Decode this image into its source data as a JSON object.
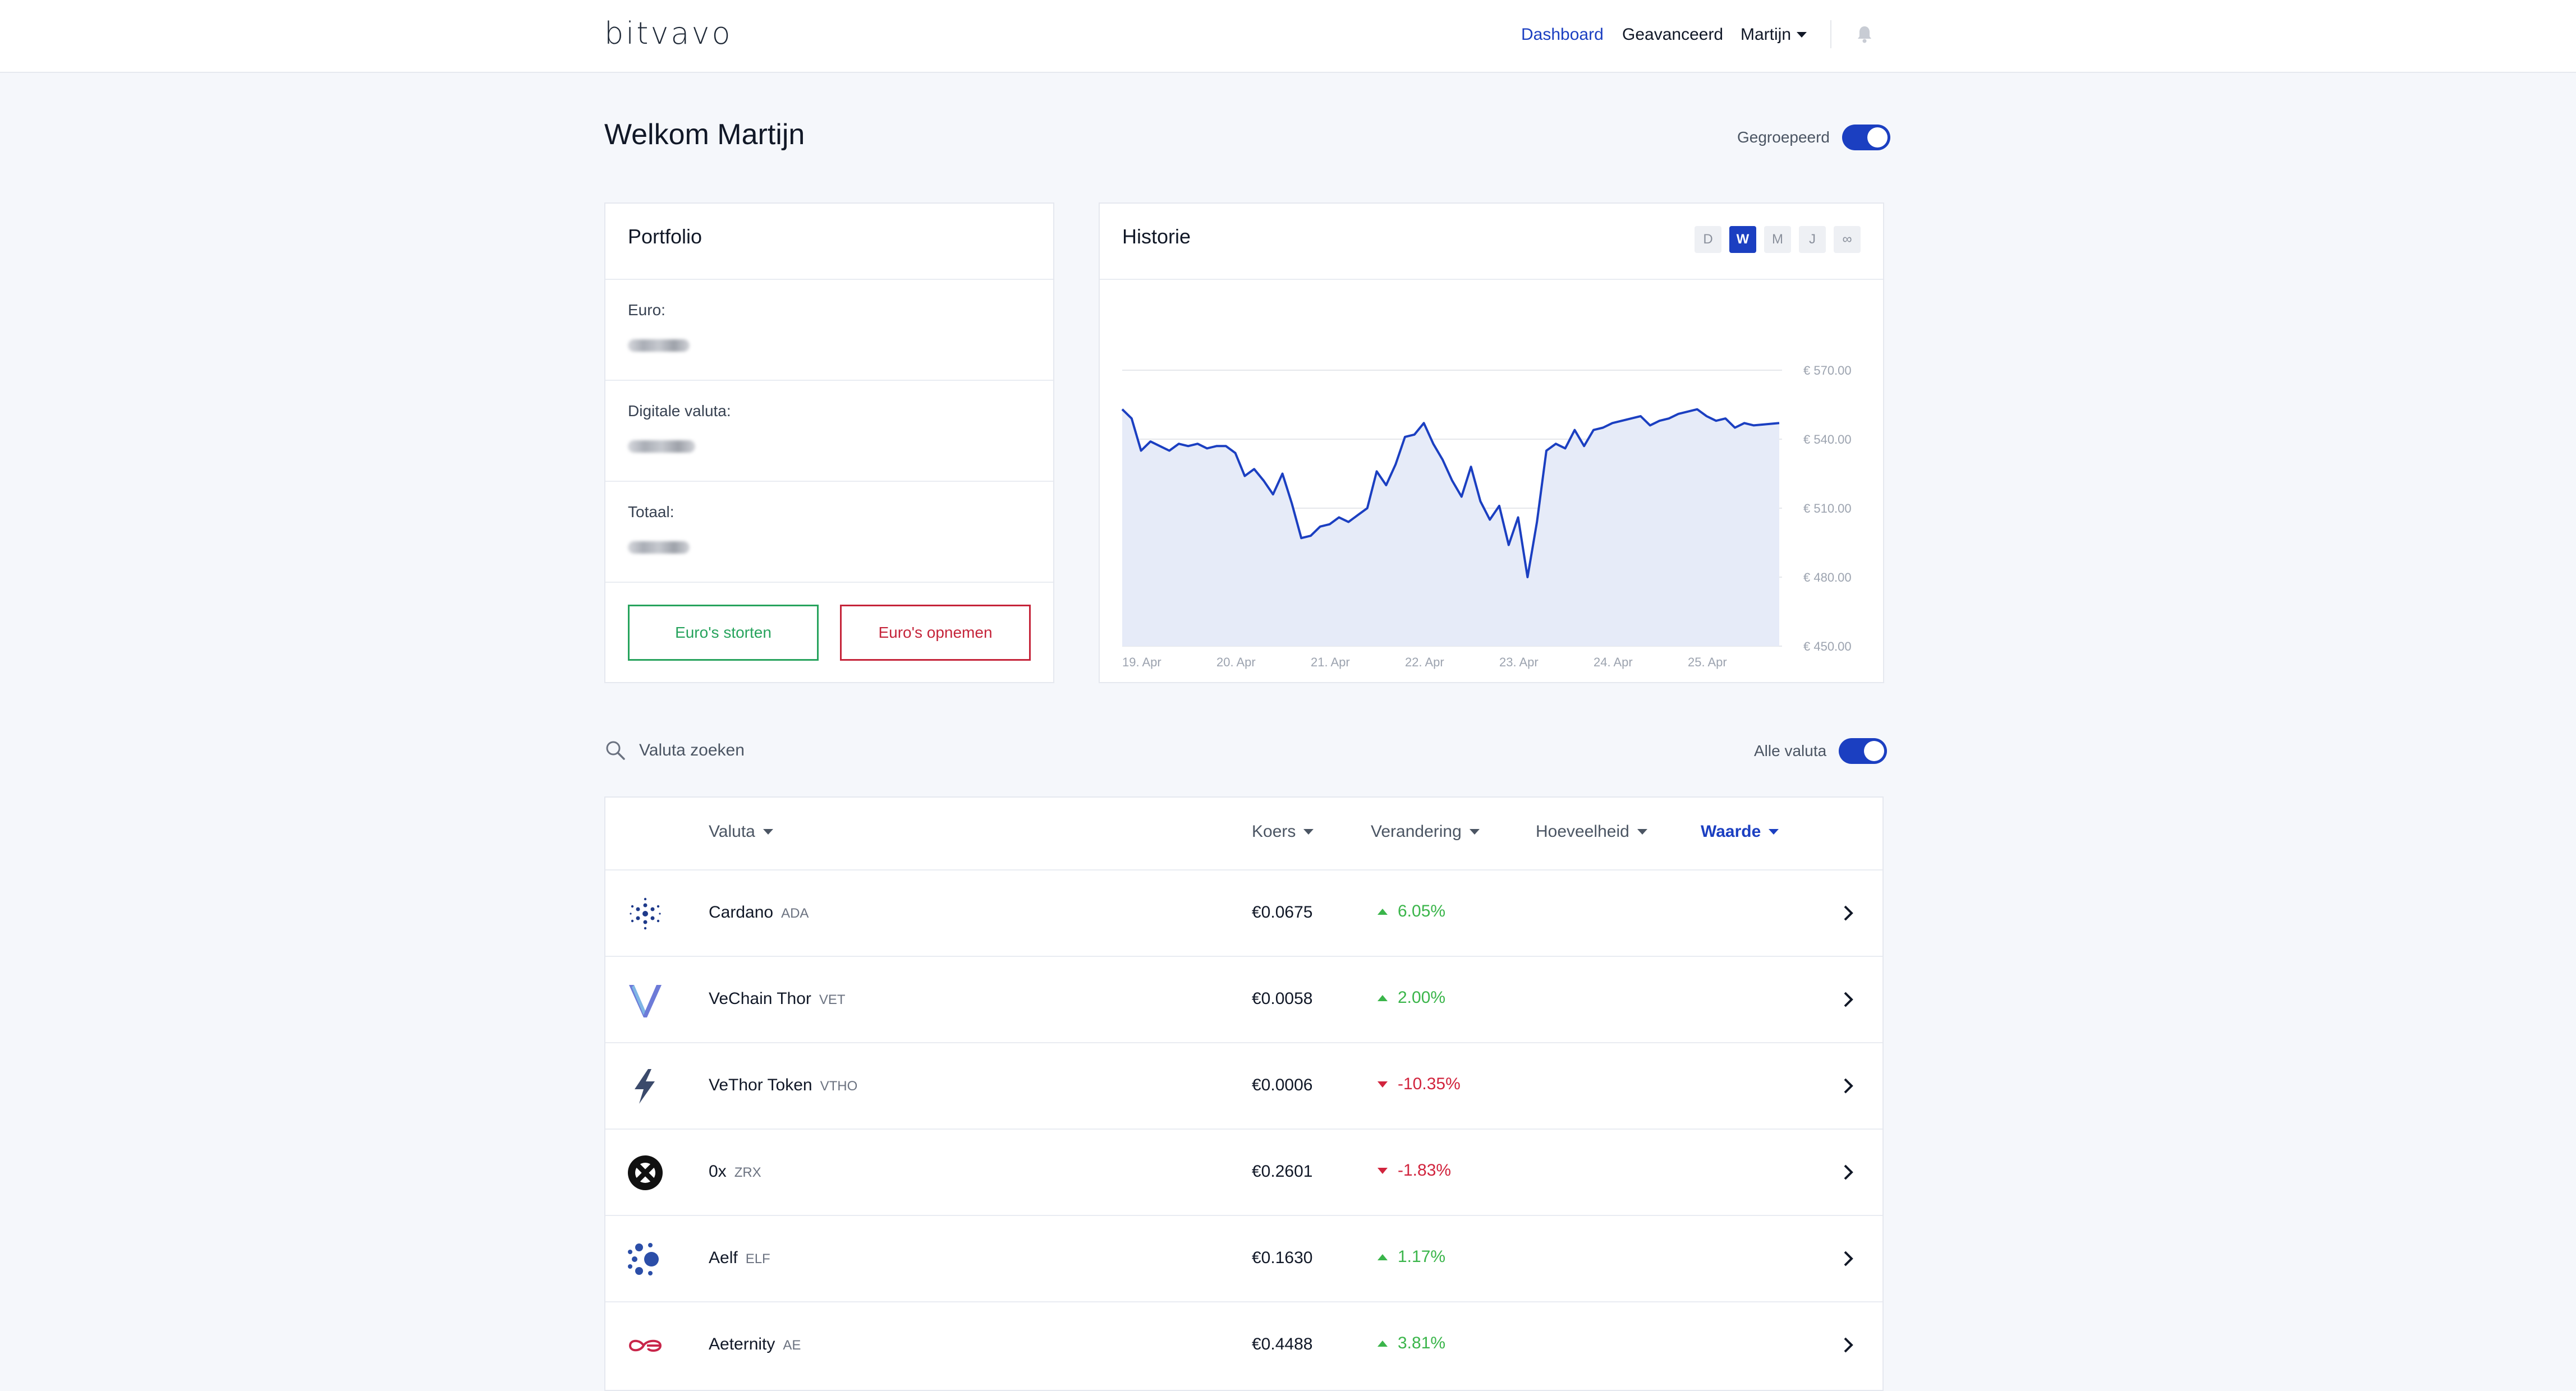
{
  "brand": {
    "logo": "bitvavo"
  },
  "nav": {
    "dashboard": "Dashboard",
    "advanced": "Geavanceerd",
    "user": "Martijn"
  },
  "welcome": {
    "title": "Welkom Martijn",
    "grouped_label": "Gegroepeerd",
    "grouped_on": true
  },
  "portfolio": {
    "title": "Portfolio",
    "euro_label": "Euro:",
    "crypto_label": "Digitale valuta:",
    "total_label": "Totaal:",
    "deposit_button": "Euro's storten",
    "withdraw_button": "Euro's opnemen"
  },
  "history": {
    "title": "Historie",
    "ranges": [
      "D",
      "W",
      "M",
      "J",
      "∞"
    ],
    "selected_range": "W"
  },
  "chart_data": {
    "type": "area",
    "title": "",
    "xlabel": "",
    "ylabel": "",
    "ylim": [
      450,
      570
    ],
    "y_ticks": [
      "€ 570.00",
      "€ 540.00",
      "€ 510.00",
      "€ 480.00",
      "€ 450.00"
    ],
    "x_ticks": [
      "19. Apr",
      "20. Apr",
      "21. Apr",
      "22. Apr",
      "23. Apr",
      "24. Apr",
      "25. Apr"
    ],
    "x_tick_positions": [
      0,
      1,
      2,
      3,
      4,
      5,
      6
    ],
    "grid": "horizontal",
    "colors": {
      "line": "#1b3fc1",
      "fill": "#e6ebf8"
    },
    "series": [
      {
        "x": [
          0,
          0.1,
          0.2,
          0.3,
          0.4,
          0.5,
          0.6,
          0.7,
          0.8,
          0.9,
          1.0,
          1.1,
          1.2,
          1.3,
          1.4,
          1.5,
          1.6,
          1.7,
          1.8,
          1.9,
          2.0,
          2.1,
          2.2,
          2.3,
          2.4,
          2.5,
          2.6,
          2.7,
          2.8,
          2.9,
          3.0,
          3.1,
          3.2,
          3.3,
          3.4,
          3.5,
          3.6,
          3.7,
          3.8,
          3.9,
          4.0,
          4.1,
          4.2,
          4.3,
          4.4,
          4.5,
          4.6,
          4.7,
          4.8,
          4.9,
          5.0,
          5.1,
          5.2,
          5.3,
          5.4,
          5.5,
          5.6,
          5.7,
          5.8,
          5.9,
          6.0,
          6.1,
          6.2,
          6.3,
          6.4,
          6.5,
          6.6,
          6.7,
          6.97
        ],
        "values": [
          553,
          549,
          535,
          539,
          537,
          535,
          538,
          537,
          538,
          536,
          537,
          537,
          534,
          524,
          527,
          522,
          516,
          525,
          512,
          497,
          498,
          502,
          503,
          506,
          504,
          507,
          510,
          526,
          520,
          529,
          541,
          542,
          547,
          538,
          531,
          522,
          515,
          528,
          513,
          505,
          511,
          494,
          506,
          480,
          504,
          535,
          538,
          536,
          544,
          537,
          544,
          545,
          547,
          548,
          549,
          550,
          546,
          548,
          549,
          551,
          552,
          553,
          550,
          548,
          549,
          545,
          547,
          546,
          547
        ]
      }
    ]
  },
  "search": {
    "placeholder": "Valuta zoeken"
  },
  "filter": {
    "all_label": "Alle valuta",
    "all_on": true
  },
  "table": {
    "columns": {
      "currency": "Valuta",
      "rate": "Koers",
      "change": "Verandering",
      "amount": "Hoeveelheid",
      "value": "Waarde"
    },
    "rows": [
      {
        "name": "Cardano",
        "ticker": "ADA",
        "price": "€0.0675",
        "change": "6.05%",
        "direction": "up",
        "icon": "cardano-icon"
      },
      {
        "name": "VeChain Thor",
        "ticker": "VET",
        "price": "€0.0058",
        "change": "2.00%",
        "direction": "up",
        "icon": "vechain-icon"
      },
      {
        "name": "VeThor Token",
        "ticker": "VTHO",
        "price": "€0.0006",
        "change": "-10.35%",
        "direction": "down",
        "icon": "vethor-icon"
      },
      {
        "name": "0x",
        "ticker": "ZRX",
        "price": "€0.2601",
        "change": "-1.83%",
        "direction": "down",
        "icon": "zrx-icon"
      },
      {
        "name": "Aelf",
        "ticker": "ELF",
        "price": "€0.1630",
        "change": "1.17%",
        "direction": "up",
        "icon": "aelf-icon"
      },
      {
        "name": "Aeternity",
        "ticker": "AE",
        "price": "€0.4488",
        "change": "3.81%",
        "direction": "up",
        "icon": "aeternity-icon"
      }
    ]
  }
}
